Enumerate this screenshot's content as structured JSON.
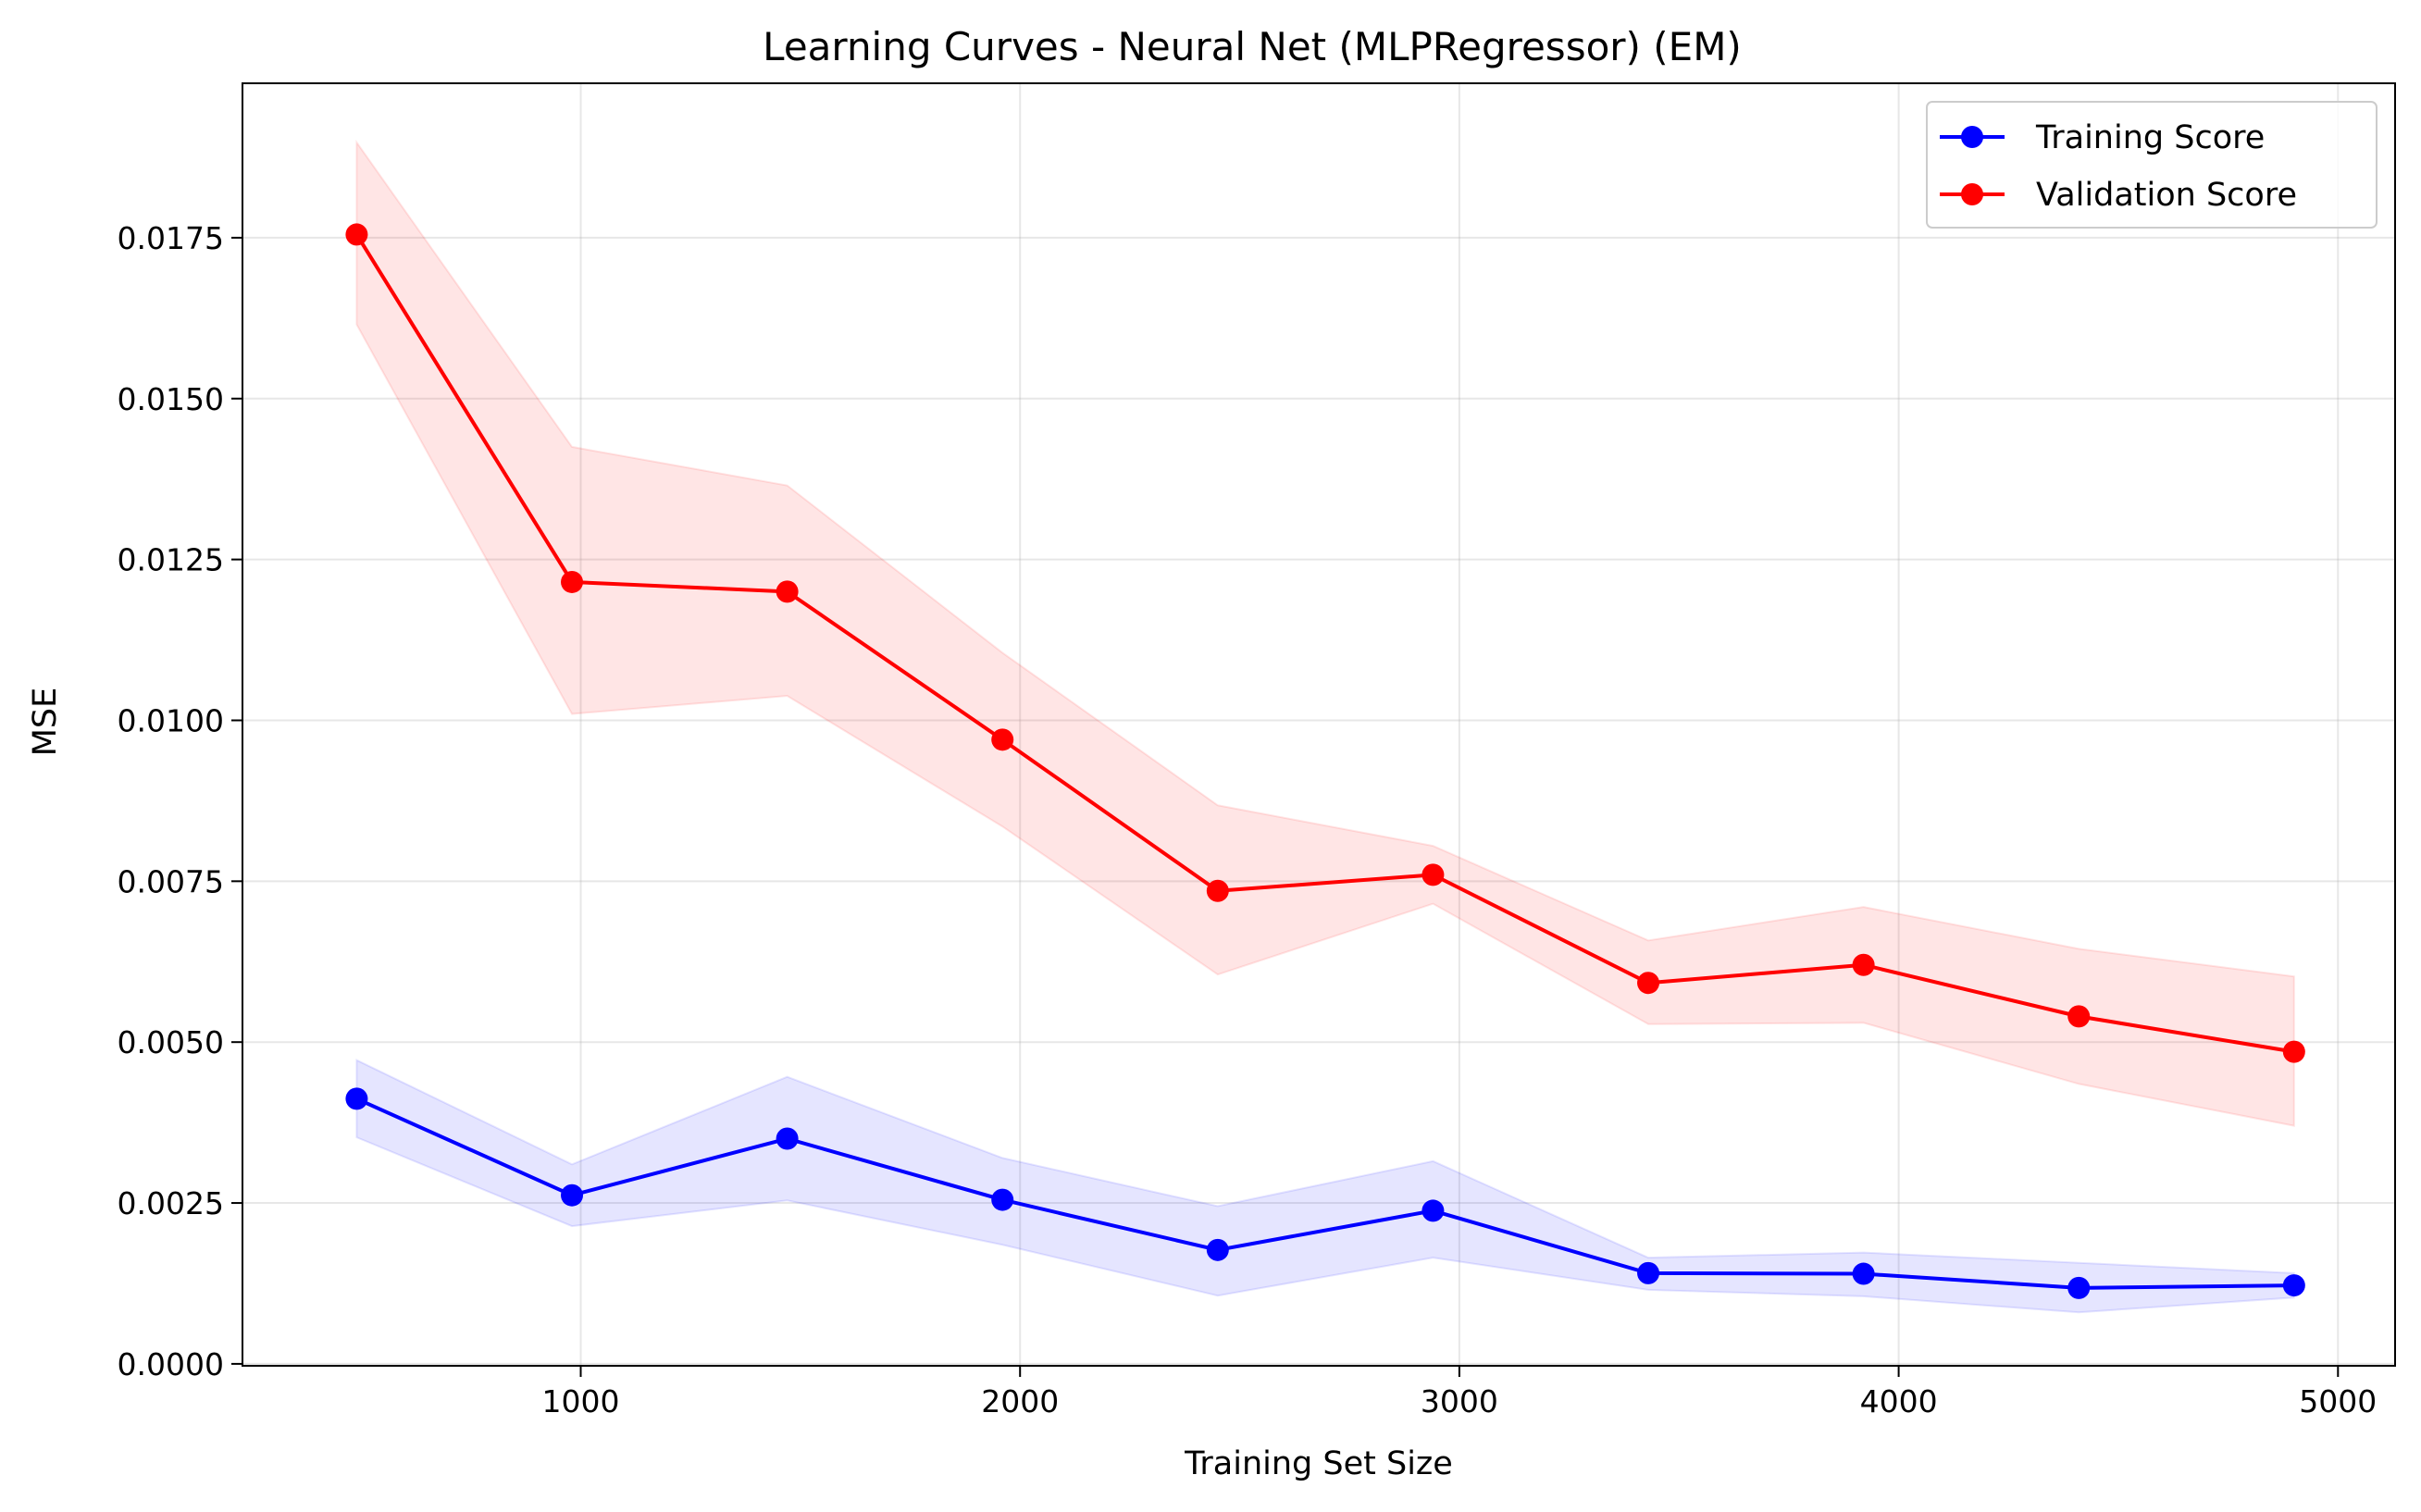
{
  "chart_data": {
    "type": "line",
    "title": "Learning Curves - Neural Net (MLPRegressor) (EM)",
    "xlabel": "Training Set Size",
    "ylabel": "MSE",
    "xlim": [
      230,
      5130
    ],
    "ylim": [
      -3e-05,
      0.0199
    ],
    "xticks": [
      1000,
      2000,
      3000,
      4000,
      5000
    ],
    "xtick_labels": [
      "1000",
      "2000",
      "3000",
      "4000",
      "5000"
    ],
    "yticks": [
      0.0,
      0.0025,
      0.005,
      0.0075,
      0.01,
      0.0125,
      0.015,
      0.0175
    ],
    "ytick_labels": [
      "0.0000",
      "0.0025",
      "0.0050",
      "0.0075",
      "0.0100",
      "0.0125",
      "0.0150",
      "0.0175"
    ],
    "grid": true,
    "legend_position": "top-right",
    "x": [
      490,
      980,
      1470,
      1960,
      2450,
      2940,
      3430,
      3920,
      4410,
      4900
    ],
    "series": [
      {
        "name": "Training Score",
        "color": "#0000ff",
        "band_color": "#0000ff",
        "values": [
          0.00412,
          0.00262,
          0.0035,
          0.00255,
          0.00177,
          0.00238,
          0.00141,
          0.0014,
          0.00118,
          0.00122
        ],
        "lower": [
          0.00352,
          0.00214,
          0.00254,
          0.00185,
          0.00106,
          0.00165,
          0.00115,
          0.00105,
          0.0008,
          0.00103
        ],
        "upper": [
          0.00472,
          0.0031,
          0.00446,
          0.0032,
          0.00245,
          0.00315,
          0.00165,
          0.00173,
          0.00157,
          0.00141
        ]
      },
      {
        "name": "Validation Score",
        "color": "#ff0000",
        "band_color": "#ff0000",
        "values": [
          0.01755,
          0.01215,
          0.012,
          0.0097,
          0.00735,
          0.0076,
          0.00592,
          0.0062,
          0.0054,
          0.00485
        ],
        "lower": [
          0.01615,
          0.0101,
          0.01038,
          0.00835,
          0.00605,
          0.00715,
          0.00528,
          0.0053,
          0.00435,
          0.0037
        ],
        "upper": [
          0.01898,
          0.01425,
          0.01365,
          0.01105,
          0.00868,
          0.00805,
          0.00658,
          0.0071,
          0.00645,
          0.00602
        ]
      }
    ]
  }
}
